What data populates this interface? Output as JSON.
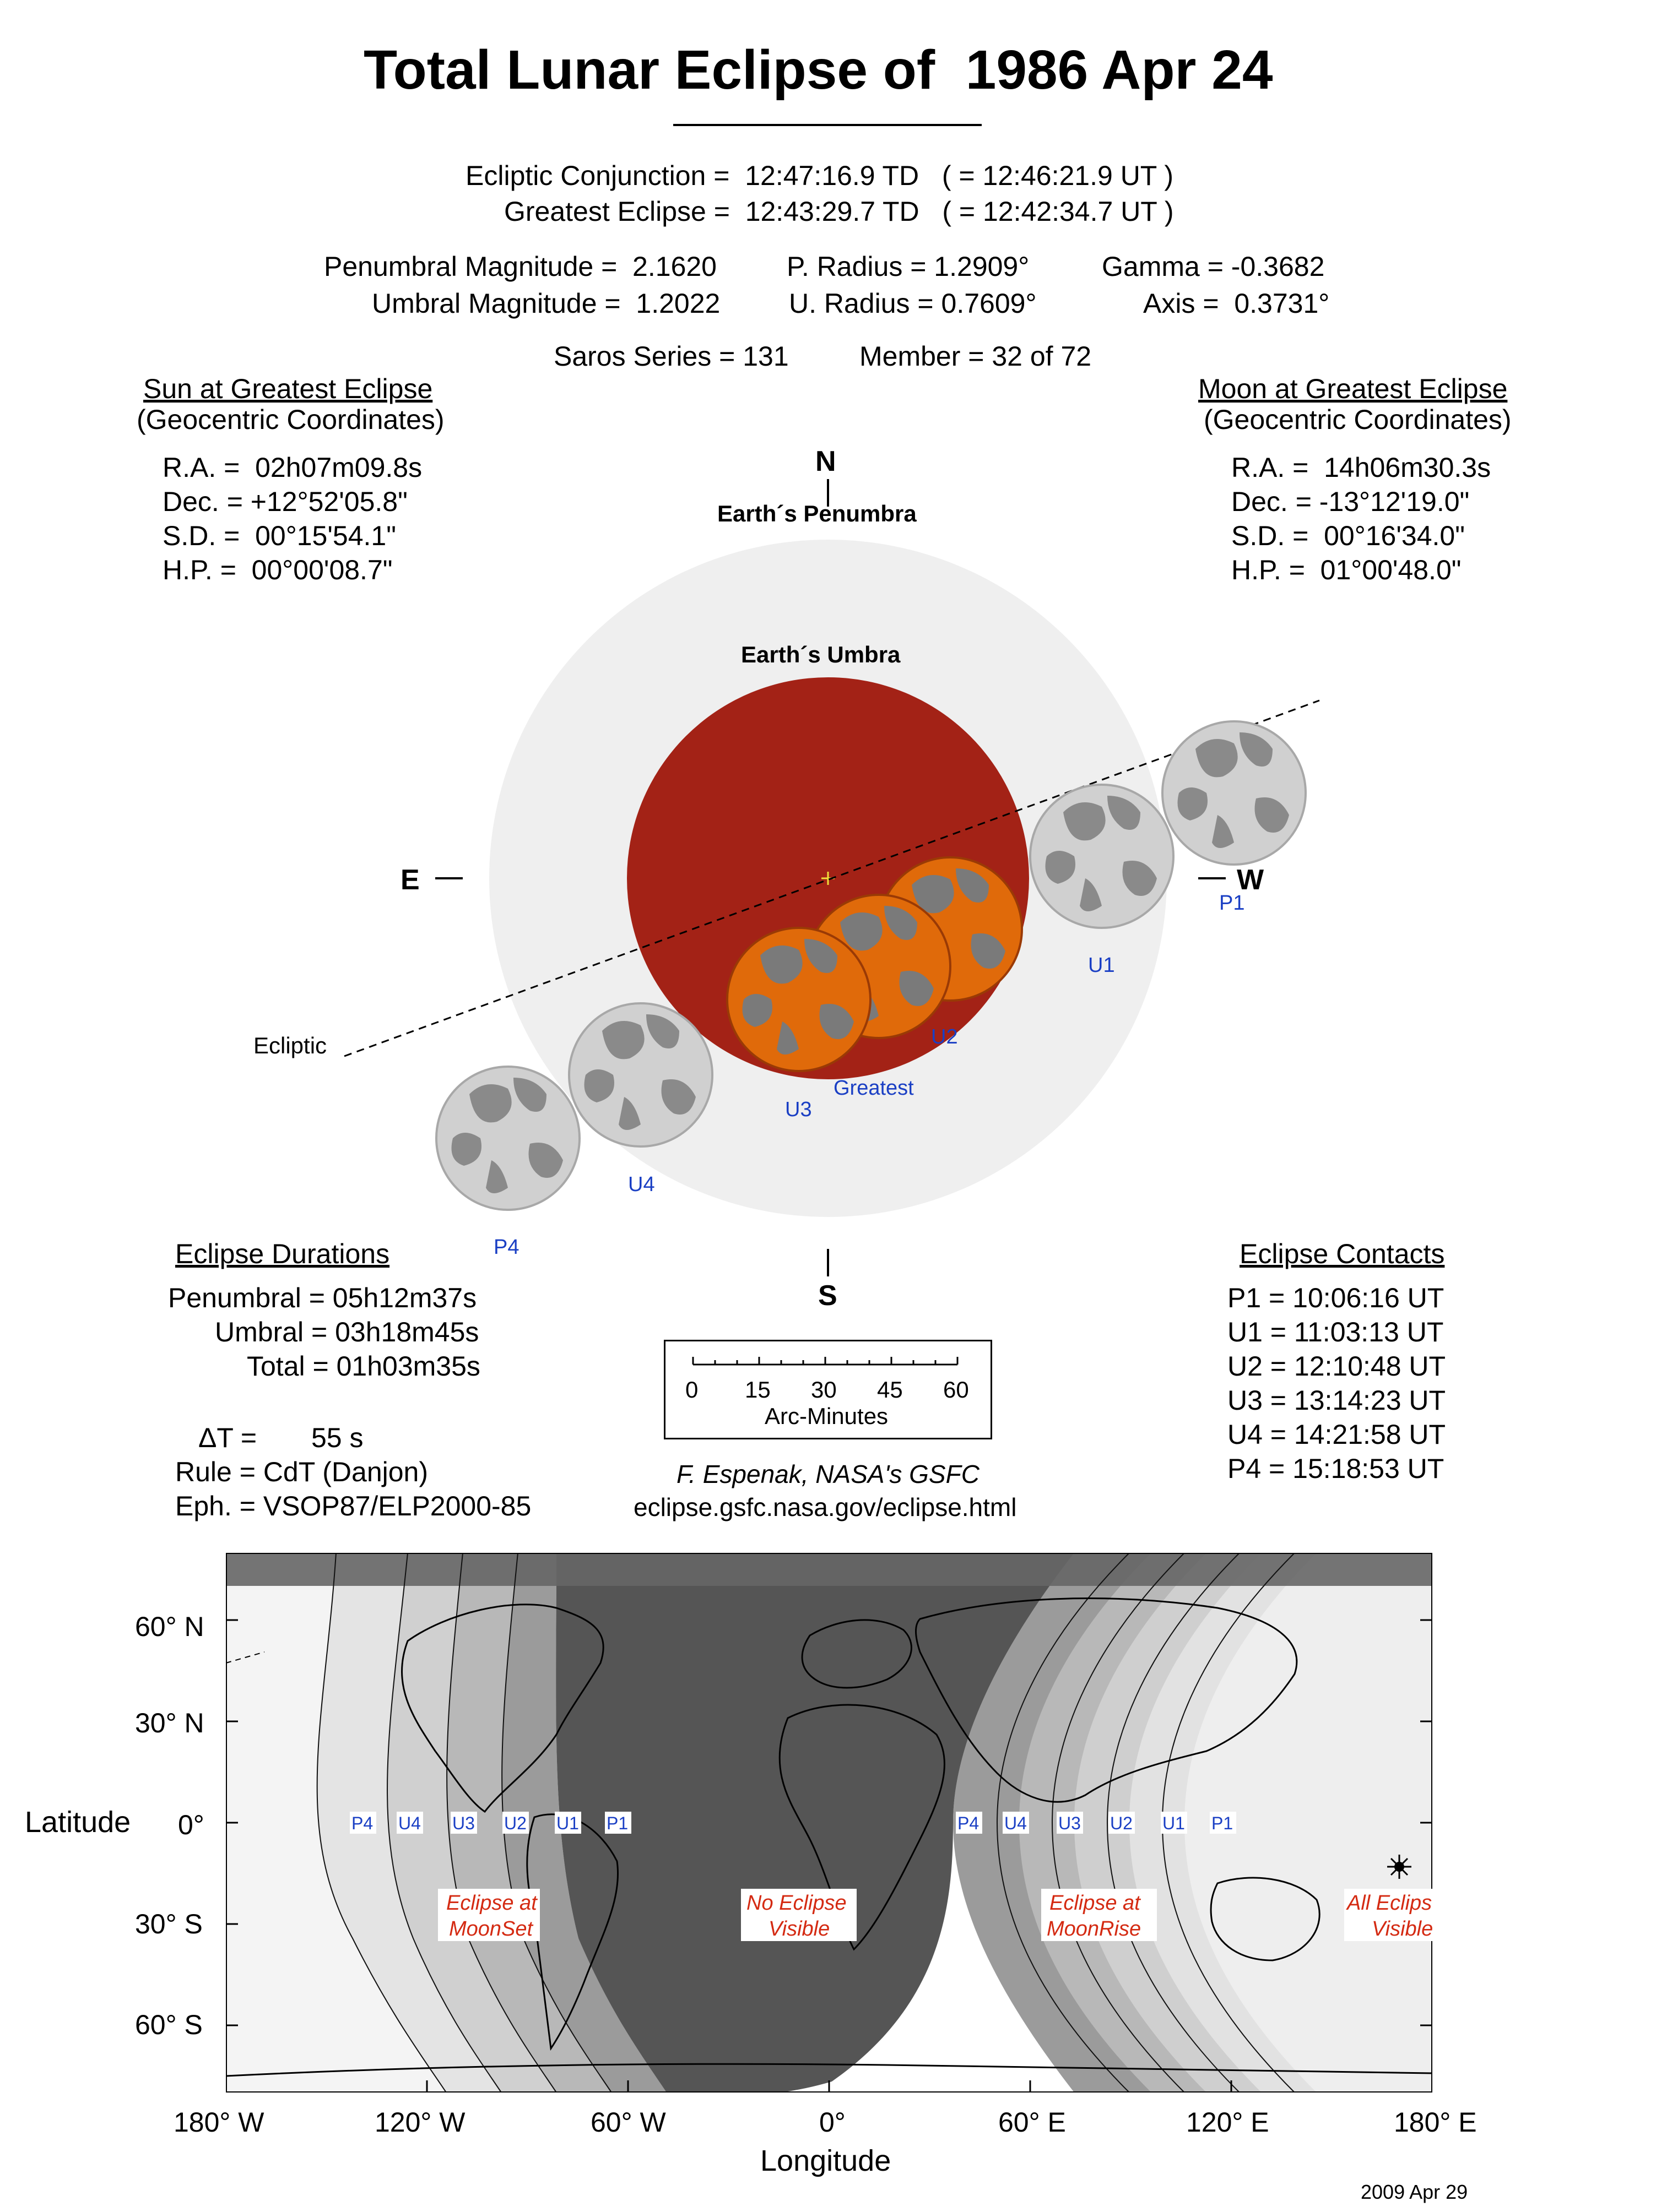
{
  "title": "Total Lunar Eclipse of  1986 Apr 24",
  "times": {
    "conjunction": "Ecliptic Conjunction =  12:47:16.9 TD   ( = 12:46:21.9 UT )",
    "greatest": "Greatest Eclipse =  12:43:29.7 TD   ( = 12:42:34.7 UT )"
  },
  "params": {
    "pen_mag": "Penumbral Magnitude =  2.1620",
    "umb_mag": "Umbral Magnitude =  1.2022",
    "p_radius": "P. Radius = 1.2909°",
    "u_radius": "U. Radius = 0.7609°",
    "gamma": "Gamma = -0.3682",
    "axis": "Axis =  0.3731°",
    "saros": "Saros Series = 131",
    "member": "Member = 32 of 72"
  },
  "sun": {
    "heading": "Sun at Greatest Eclipse",
    "sub": "(Geocentric Coordinates)",
    "ra": "R.A. =  02h07m09.8s",
    "dec": "Dec. = +12°52'05.8\"",
    "sd": "S.D. =  00°15'54.1\"",
    "hp": "H.P. =  00°00'08.7\""
  },
  "moon": {
    "heading": "Moon at Greatest Eclipse",
    "sub": "(Geocentric Coordinates)",
    "ra": "R.A. =  14h06m30.3s",
    "dec": "Dec. = -13°12'19.0\"",
    "sd": "S.D. =  00°16'34.0\"",
    "hp": "H.P. =  01°00'48.0\""
  },
  "diagram": {
    "north": "N",
    "south": "S",
    "east": "E",
    "west": "W",
    "penumbra_label": "Earth´s Penumbra",
    "umbra_label": "Earth´s Umbra",
    "ecliptic_label": "Ecliptic",
    "greatest_label": "Greatest",
    "contact_labels": [
      "P1",
      "U1",
      "U2",
      "U3",
      "U4",
      "P4"
    ]
  },
  "durations": {
    "heading": "Eclipse Durations",
    "penumbral": "Penumbral = 05h12m37s",
    "umbral": "Umbral = 03h18m45s",
    "total": "Total = 01h03m35s"
  },
  "misc": {
    "delta_t_label": "ΔT =",
    "delta_t_value": "55 s",
    "rule": "Rule = CdT (Danjon)",
    "eph": "Eph. = VSOP87/ELP2000-85"
  },
  "scale": {
    "ticks": [
      "0",
      "15",
      "30",
      "45",
      "60"
    ],
    "label": "Arc-Minutes"
  },
  "credit": {
    "author": "F. Espenak, NASA's GSFC",
    "url": "eclipse.gsfc.nasa.gov/eclipse.html"
  },
  "contacts": {
    "heading": "Eclipse Contacts",
    "p1": "P1 = 10:06:16 UT",
    "u1": "U1 = 11:03:13 UT",
    "u2": "U2 = 12:10:48 UT",
    "u3": "U3 = 13:14:23 UT",
    "u4": "U4 = 14:21:58 UT",
    "p4": "P4 = 15:18:53 UT"
  },
  "map": {
    "lat_ticks": [
      "60° N",
      "30° N",
      "0°",
      "30° S",
      "60° S"
    ],
    "lon_ticks": [
      "180° W",
      "120° W",
      "60° W",
      "0°",
      "60° E",
      "120° E",
      "180° E"
    ],
    "ylabel": "Latitude",
    "xlabel": "Longitude",
    "region_set": [
      "Eclipse at",
      "MoonSet"
    ],
    "region_none": [
      "No Eclipse",
      "Visible"
    ],
    "region_rise": [
      "Eclipse at",
      "MoonRise"
    ],
    "region_all": [
      "All Eclipse",
      "Visible"
    ],
    "date": "2009 Apr 29"
  },
  "colors": {
    "umbra": "#a32216",
    "penumbra": "#efefef",
    "moon_eclipsed": "#e06a0a",
    "moon_gray": "#c8c8c8",
    "label_blue": "#1a3fc4",
    "label_red": "#d42a12",
    "night": "#555555"
  }
}
